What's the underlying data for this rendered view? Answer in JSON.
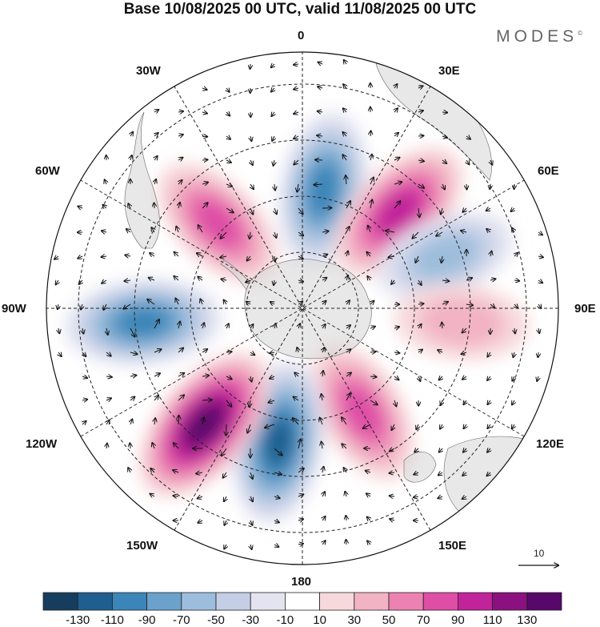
{
  "title": "Base 10/08/2025 00 UTC, valid 11/08/2025 00 UTC",
  "brand": "MODES",
  "brand_mark": "©",
  "longitude_labels": {
    "l0": "0",
    "l30e": "30E",
    "l60e": "60E",
    "l90e": "90E",
    "l120e": "120E",
    "l150e": "150E",
    "l180": "180",
    "l150w": "150W",
    "l120w": "120W",
    "l90w": "90W",
    "l60w": "60W",
    "l30w": "30W"
  },
  "reference_vector_label": "10",
  "colorbar": {
    "colors": [
      "#173d5e",
      "#1f5f8f",
      "#3b85b8",
      "#6ba2cc",
      "#9dbddc",
      "#c4cfe6",
      "#e4e4f1",
      "#ffffff",
      "#f7d9dc",
      "#f2b3c4",
      "#ec82b2",
      "#de4ea6",
      "#c1239a",
      "#8a117f",
      "#57086a"
    ],
    "tick_labels": [
      "-130",
      "-110",
      "-90",
      "-70",
      "-50",
      "-30",
      "-10",
      "10",
      "30",
      "50",
      "70",
      "90",
      "110",
      "130"
    ]
  },
  "chart_data": {
    "type": "polar-stereographic-map",
    "projection": "south-polar stereographic",
    "field": "anomaly (shaded) with wind vectors",
    "base_time": "10/08/2025 00 UTC",
    "valid_time": "11/08/2025 00 UTC",
    "contour_levels": [
      -130,
      -110,
      -90,
      -70,
      -50,
      -30,
      -10,
      10,
      30,
      50,
      70,
      90,
      110,
      130
    ],
    "anomaly_centers": [
      {
        "sign": "negative",
        "approx_lon": "10E",
        "peak": -90
      },
      {
        "sign": "positive",
        "approx_lon": "45E",
        "peak": 100
      },
      {
        "sign": "negative",
        "approx_lon": "70E",
        "peak": -50
      },
      {
        "sign": "positive",
        "approx_lon": "95E",
        "peak": 30
      },
      {
        "sign": "positive",
        "approx_lon": "150E",
        "peak": 70
      },
      {
        "sign": "negative",
        "approx_lon": "170W",
        "peak": -110
      },
      {
        "sign": "positive",
        "approx_lon": "140W",
        "peak": 130
      },
      {
        "sign": "negative",
        "approx_lon": "95W",
        "peak": -90
      },
      {
        "sign": "positive",
        "approx_lon": "45W",
        "peak": 70
      }
    ]
  }
}
